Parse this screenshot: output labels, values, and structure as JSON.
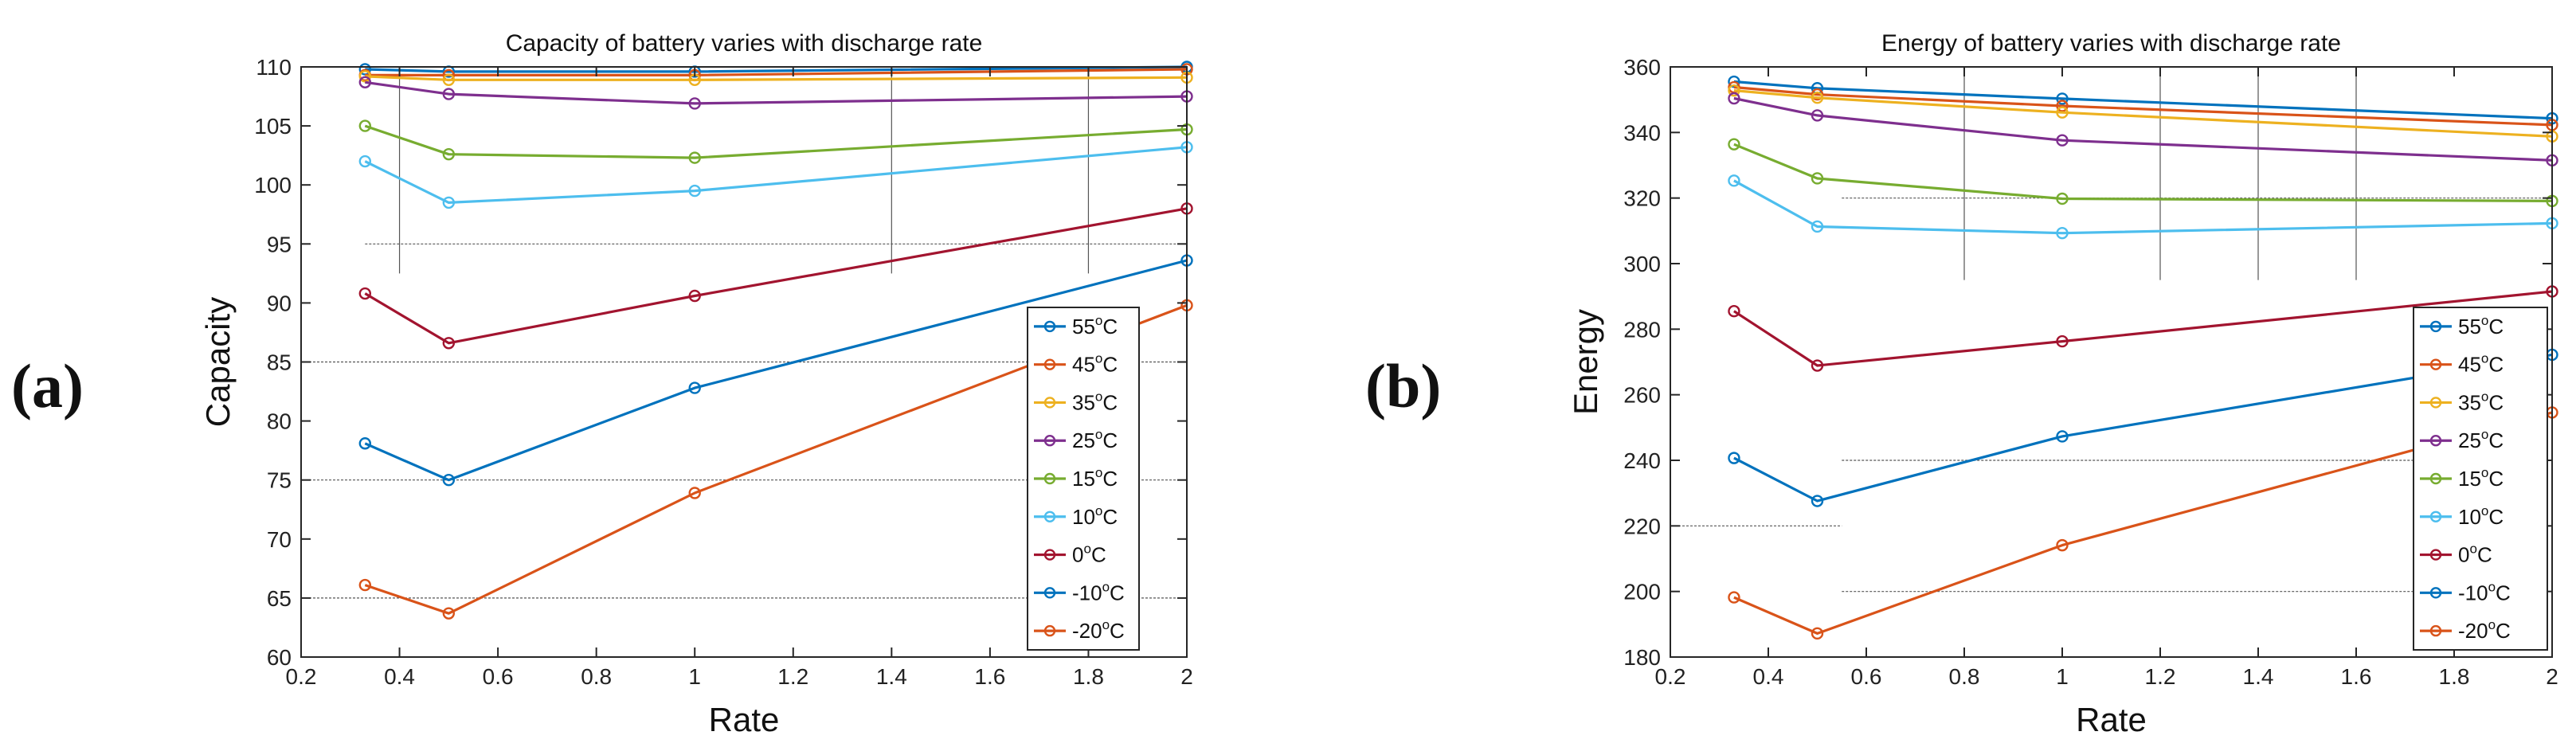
{
  "panels": {
    "a": {
      "label": "(a)"
    },
    "b": {
      "label": "(b)"
    }
  },
  "chart_data": [
    {
      "type": "line",
      "title": "Capacity  of battery varies with discharge rate",
      "xlabel": "Rate",
      "ylabel": "Capacity",
      "xlim": [
        0.2,
        2
      ],
      "ylim": [
        60,
        110
      ],
      "xticks": [
        0.2,
        0.4,
        0.6,
        0.8,
        1,
        1.2,
        1.4,
        1.6,
        1.8,
        2
      ],
      "xtick_labels": [
        "0.2",
        "0.4",
        "0.6",
        "0.8",
        "1",
        "1.2",
        "1.4",
        "1.6",
        "1.8",
        "2"
      ],
      "yticks": [
        60,
        65,
        70,
        75,
        80,
        85,
        90,
        95,
        100,
        105,
        110
      ],
      "ytick_labels": [
        "60",
        "65",
        "70",
        "75",
        "80",
        "85",
        "90",
        "95",
        "100",
        "105",
        "110"
      ],
      "legend_position": "bottom-right",
      "x": [
        0.33,
        0.5,
        1,
        2
      ],
      "series": [
        {
          "name": "55",
          "unit": "C",
          "color": "#0072BD",
          "values": [
            109.8,
            109.6,
            109.6,
            110
          ]
        },
        {
          "name": "45",
          "unit": "C",
          "color": "#D95319",
          "values": [
            109.3,
            109.3,
            109.3,
            109.8
          ]
        },
        {
          "name": "35",
          "unit": "C",
          "color": "#EDB120",
          "values": [
            109.2,
            108.9,
            108.9,
            109.1
          ]
        },
        {
          "name": "25",
          "unit": "C",
          "color": "#7E2F8E",
          "values": [
            108.7,
            107.7,
            106.9,
            107.5
          ]
        },
        {
          "name": "15",
          "unit": "C",
          "color": "#77AC30",
          "values": [
            105,
            102.6,
            102.3,
            104.7
          ]
        },
        {
          "name": "10",
          "unit": "C",
          "color": "#4DBEEE",
          "values": [
            102,
            98.5,
            99.5,
            103.2
          ]
        },
        {
          "name": "0",
          "unit": "C",
          "color": "#A2142F",
          "values": [
            90.8,
            86.6,
            90.6,
            98
          ]
        },
        {
          "name": "-10",
          "unit": "C",
          "color": "#0072BD",
          "values": [
            78.1,
            75,
            82.8,
            93.6
          ]
        },
        {
          "name": "-20",
          "unit": "C",
          "color": "#D95319",
          "values": [
            66.1,
            63.7,
            73.9,
            89.8
          ]
        }
      ]
    },
    {
      "type": "line",
      "title": "Energy of battery varies with discharge rate",
      "xlabel": "Rate",
      "ylabel": "Energy",
      "xlim": [
        0.2,
        2
      ],
      "ylim": [
        180,
        360
      ],
      "xticks": [
        0.2,
        0.4,
        0.6,
        0.8,
        1,
        1.2,
        1.4,
        1.6,
        1.8,
        2
      ],
      "xtick_labels": [
        "0.2",
        "0.4",
        "0.6",
        "0.8",
        "1",
        "1.2",
        "1.4",
        "1.6",
        "1.8",
        "2"
      ],
      "yticks": [
        180,
        200,
        220,
        240,
        260,
        280,
        300,
        320,
        340,
        360
      ],
      "ytick_labels": [
        "180",
        "200",
        "220",
        "240",
        "260",
        "280",
        "300",
        "320",
        "340",
        "360"
      ],
      "legend_position": "bottom-right",
      "x": [
        0.33,
        0.5,
        1,
        2
      ],
      "series": [
        {
          "name": "55",
          "unit": "C",
          "color": "#0072BD",
          "values": [
            355.5,
            353.5,
            350.3,
            344.3
          ]
        },
        {
          "name": "45",
          "unit": "C",
          "color": "#D95319",
          "values": [
            353.8,
            351.6,
            348.1,
            342.3
          ]
        },
        {
          "name": "35",
          "unit": "C",
          "color": "#EDB120",
          "values": [
            352.8,
            350.6,
            346.1,
            338.8
          ]
        },
        {
          "name": "25",
          "unit": "C",
          "color": "#7E2F8E",
          "values": [
            350.4,
            345.2,
            337.6,
            331.5
          ]
        },
        {
          "name": "15",
          "unit": "C",
          "color": "#77AC30",
          "values": [
            336.4,
            326,
            319.8,
            319.1
          ]
        },
        {
          "name": "10",
          "unit": "C",
          "color": "#4DBEEE",
          "values": [
            325.3,
            311.3,
            309.3,
            312.3
          ]
        },
        {
          "name": "0",
          "unit": "C",
          "color": "#A2142F",
          "values": [
            285.5,
            268.9,
            276.3,
            291.5
          ]
        },
        {
          "name": "-10",
          "unit": "C",
          "color": "#0072BD",
          "values": [
            240.7,
            227.6,
            247.3,
            272.2
          ]
        },
        {
          "name": "-20",
          "unit": "C",
          "color": "#D95319",
          "values": [
            198.2,
            187.2,
            214.1,
            254.6
          ]
        }
      ]
    }
  ]
}
